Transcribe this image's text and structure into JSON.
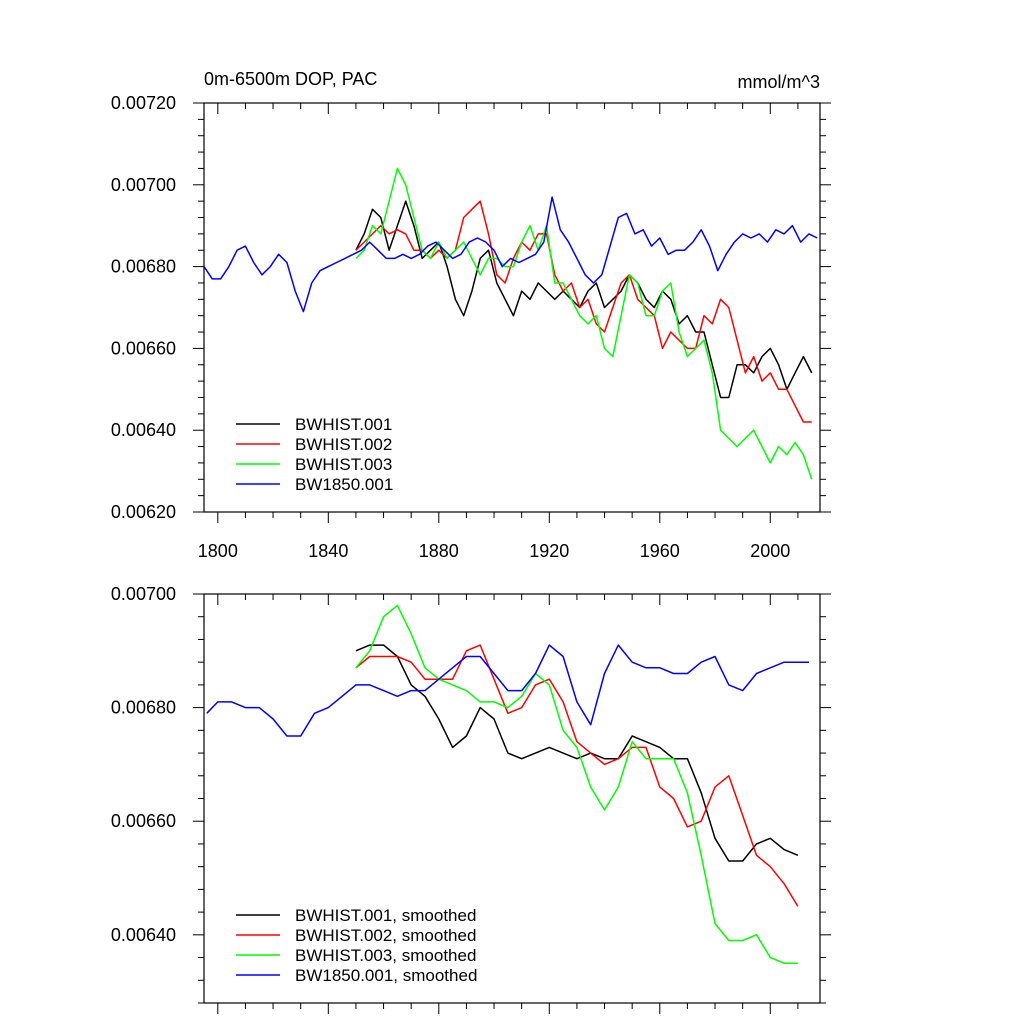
{
  "chart_data": [
    {
      "type": "line",
      "title": "0m-6500m DOP, PAC",
      "units": "mmol/m^3",
      "xlabel": "",
      "ylabel": "",
      "xlim": [
        1795,
        2018
      ],
      "ylim": [
        0.0062,
        0.0072
      ],
      "x_ticks": [
        1800,
        1840,
        1880,
        1920,
        1960,
        2000
      ],
      "x_tick_labels": [
        "1800",
        "1840",
        "1880",
        "1920",
        "1960",
        "2000"
      ],
      "y_ticks": [
        0.0062,
        0.0064,
        0.0066,
        0.0068,
        0.007,
        0.0072
      ],
      "y_tick_labels": [
        "0.00620",
        "0.00640",
        "0.00660",
        "0.00680",
        "0.00700",
        "0.00720"
      ],
      "legend_position": "bottom-left",
      "series": [
        {
          "name": "BWHIST.001",
          "color": "#000000",
          "x": [
            1850,
            1853,
            1856,
            1859,
            1862,
            1865,
            1868,
            1871,
            1874,
            1877,
            1880,
            1883,
            1886,
            1889,
            1892,
            1895,
            1898,
            1901,
            1904,
            1907,
            1910,
            1913,
            1916,
            1919,
            1922,
            1925,
            1928,
            1931,
            1934,
            1937,
            1940,
            1943,
            1946,
            1949,
            1952,
            1955,
            1958,
            1961,
            1964,
            1967,
            1970,
            1973,
            1976,
            1979,
            1982,
            1985,
            1988,
            1991,
            1994,
            1997,
            2000,
            2003,
            2006,
            2009,
            2012,
            2015
          ],
          "values": [
            0.00684,
            0.00688,
            0.00694,
            0.00692,
            0.00684,
            0.0069,
            0.00696,
            0.0069,
            0.00682,
            0.00684,
            0.00686,
            0.0068,
            0.00672,
            0.00668,
            0.00674,
            0.00682,
            0.00684,
            0.00676,
            0.00672,
            0.00668,
            0.00674,
            0.00672,
            0.00676,
            0.00674,
            0.00672,
            0.00674,
            0.00672,
            0.0067,
            0.00674,
            0.00676,
            0.0067,
            0.00672,
            0.00674,
            0.00678,
            0.00676,
            0.00672,
            0.0067,
            0.00674,
            0.00672,
            0.00666,
            0.00668,
            0.00664,
            0.00664,
            0.00656,
            0.00648,
            0.00648,
            0.00656,
            0.00656,
            0.00654,
            0.00658,
            0.0066,
            0.00656,
            0.0065,
            0.00654,
            0.00658,
            0.00654
          ]
        },
        {
          "name": "BWHIST.002",
          "color": "#ff0000",
          "x": [
            1850,
            1853,
            1856,
            1859,
            1862,
            1865,
            1868,
            1871,
            1874,
            1877,
            1880,
            1883,
            1886,
            1889,
            1892,
            1895,
            1898,
            1901,
            1904,
            1907,
            1910,
            1913,
            1916,
            1919,
            1922,
            1925,
            1928,
            1931,
            1934,
            1937,
            1940,
            1943,
            1946,
            1949,
            1952,
            1955,
            1958,
            1961,
            1964,
            1967,
            1970,
            1973,
            1976,
            1979,
            1982,
            1985,
            1988,
            1991,
            1994,
            1997,
            2000,
            2003,
            2006,
            2009,
            2012,
            2015
          ],
          "values": [
            0.00684,
            0.00686,
            0.00688,
            0.0069,
            0.00688,
            0.00689,
            0.00688,
            0.00684,
            0.00684,
            0.00682,
            0.00684,
            0.00682,
            0.00684,
            0.00692,
            0.00694,
            0.00696,
            0.00688,
            0.00678,
            0.00676,
            0.00682,
            0.00686,
            0.00684,
            0.00688,
            0.00688,
            0.00678,
            0.00674,
            0.00676,
            0.0067,
            0.00672,
            0.00666,
            0.00664,
            0.0067,
            0.00676,
            0.00678,
            0.00672,
            0.0067,
            0.00668,
            0.0066,
            0.00664,
            0.00662,
            0.0066,
            0.0066,
            0.00668,
            0.00666,
            0.00672,
            0.0067,
            0.00662,
            0.00654,
            0.00658,
            0.00652,
            0.00654,
            0.0065,
            0.0065,
            0.00646,
            0.00642,
            0.00642
          ]
        },
        {
          "name": "BWHIST.003",
          "color": "#00ff00",
          "x": [
            1850,
            1853,
            1856,
            1859,
            1862,
            1865,
            1868,
            1871,
            1874,
            1877,
            1880,
            1883,
            1886,
            1889,
            1892,
            1895,
            1898,
            1901,
            1904,
            1907,
            1910,
            1913,
            1916,
            1919,
            1922,
            1925,
            1928,
            1931,
            1934,
            1937,
            1940,
            1943,
            1946,
            1949,
            1952,
            1955,
            1958,
            1961,
            1964,
            1967,
            1970,
            1973,
            1976,
            1979,
            1982,
            1985,
            1988,
            1991,
            1994,
            1997,
            2000,
            2003,
            2006,
            2009,
            2012,
            2015
          ],
          "values": [
            0.00682,
            0.00684,
            0.0069,
            0.00688,
            0.00696,
            0.00704,
            0.007,
            0.00692,
            0.00684,
            0.00682,
            0.00686,
            0.00682,
            0.00684,
            0.00686,
            0.00682,
            0.00678,
            0.00682,
            0.00682,
            0.0068,
            0.0068,
            0.00686,
            0.0069,
            0.00684,
            0.0069,
            0.00676,
            0.00676,
            0.00672,
            0.00668,
            0.00666,
            0.00668,
            0.0066,
            0.00658,
            0.00668,
            0.00678,
            0.00676,
            0.00668,
            0.00668,
            0.00674,
            0.00676,
            0.00664,
            0.00658,
            0.0066,
            0.00662,
            0.00654,
            0.0064,
            0.00638,
            0.00636,
            0.00638,
            0.0064,
            0.00636,
            0.00632,
            0.00636,
            0.00634,
            0.00637,
            0.00634,
            0.00628
          ]
        },
        {
          "name": "BW1850.001",
          "color": "#0000ff",
          "x": [
            1795,
            1798,
            1801,
            1804,
            1807,
            1810,
            1813,
            1816,
            1819,
            1822,
            1825,
            1828,
            1831,
            1834,
            1837,
            1840,
            1843,
            1846,
            1849,
            1852,
            1855,
            1858,
            1861,
            1864,
            1867,
            1870,
            1873,
            1876,
            1879,
            1882,
            1885,
            1888,
            1891,
            1894,
            1897,
            1900,
            1903,
            1906,
            1909,
            1912,
            1915,
            1918,
            1921,
            1924,
            1927,
            1930,
            1933,
            1936,
            1939,
            1942,
            1945,
            1948,
            1951,
            1954,
            1957,
            1960,
            1963,
            1966,
            1969,
            1972,
            1975,
            1978,
            1981,
            1984,
            1987,
            1990,
            1993,
            1996,
            1999,
            2002,
            2005,
            2008,
            2011,
            2014,
            2017
          ],
          "values": [
            0.0068,
            0.00677,
            0.00677,
            0.0068,
            0.00684,
            0.00685,
            0.00681,
            0.00678,
            0.0068,
            0.00683,
            0.00681,
            0.00674,
            0.00669,
            0.00676,
            0.00679,
            0.0068,
            0.00681,
            0.00682,
            0.00683,
            0.00684,
            0.00686,
            0.00684,
            0.00682,
            0.00682,
            0.00683,
            0.00682,
            0.00683,
            0.00685,
            0.00686,
            0.00684,
            0.00682,
            0.00683,
            0.00686,
            0.00687,
            0.00686,
            0.00684,
            0.0068,
            0.00682,
            0.00681,
            0.00682,
            0.00683,
            0.00686,
            0.00697,
            0.00689,
            0.00686,
            0.00682,
            0.00678,
            0.00676,
            0.00678,
            0.00685,
            0.00692,
            0.00693,
            0.00688,
            0.00689,
            0.00685,
            0.00687,
            0.00683,
            0.00684,
            0.00684,
            0.00686,
            0.00689,
            0.00685,
            0.00679,
            0.00683,
            0.00686,
            0.00688,
            0.00687,
            0.00688,
            0.00686,
            0.00689,
            0.00688,
            0.0069,
            0.00686,
            0.00688,
            0.00687
          ]
        }
      ]
    },
    {
      "type": "line",
      "title": "",
      "xlabel": "",
      "ylabel": "",
      "xlim": [
        1795,
        2018
      ],
      "ylim": [
        0.00628,
        0.007
      ],
      "x_ticks": [
        1800,
        1840,
        1880,
        1920,
        1960,
        2000
      ],
      "y_ticks": [
        0.0064,
        0.0066,
        0.0068,
        0.007
      ],
      "y_tick_labels": [
        "0.00640",
        "0.00660",
        "0.00680",
        "0.00700"
      ],
      "legend_position": "bottom-left",
      "series": [
        {
          "name": "BWHIST.001, smoothed",
          "color": "#000000",
          "x": [
            1850,
            1855,
            1860,
            1865,
            1870,
            1875,
            1880,
            1885,
            1890,
            1895,
            1900,
            1905,
            1910,
            1915,
            1920,
            1925,
            1930,
            1935,
            1940,
            1945,
            1950,
            1955,
            1960,
            1965,
            1970,
            1975,
            1980,
            1985,
            1990,
            1995,
            2000,
            2005,
            2010
          ],
          "values": [
            0.0069,
            0.00691,
            0.00691,
            0.00689,
            0.00684,
            0.00682,
            0.00678,
            0.00673,
            0.00675,
            0.0068,
            0.00678,
            0.00672,
            0.00671,
            0.00672,
            0.00673,
            0.00672,
            0.00671,
            0.00672,
            0.00671,
            0.00671,
            0.00675,
            0.00674,
            0.00673,
            0.00671,
            0.00671,
            0.00665,
            0.00657,
            0.00653,
            0.00653,
            0.00656,
            0.00657,
            0.00655,
            0.00654
          ]
        },
        {
          "name": "BWHIST.002, smoothed",
          "color": "#ff0000",
          "x": [
            1850,
            1855,
            1860,
            1865,
            1870,
            1875,
            1880,
            1885,
            1890,
            1895,
            1900,
            1905,
            1910,
            1915,
            1920,
            1925,
            1930,
            1935,
            1940,
            1945,
            1950,
            1955,
            1960,
            1965,
            1970,
            1975,
            1980,
            1985,
            1990,
            1995,
            2000,
            2005,
            2010
          ],
          "values": [
            0.00687,
            0.00689,
            0.00689,
            0.00689,
            0.00688,
            0.00685,
            0.00685,
            0.00685,
            0.0069,
            0.00691,
            0.00685,
            0.00679,
            0.0068,
            0.00684,
            0.00685,
            0.00681,
            0.00674,
            0.00672,
            0.0067,
            0.00671,
            0.00673,
            0.00673,
            0.00666,
            0.00664,
            0.00659,
            0.0066,
            0.00666,
            0.00668,
            0.00661,
            0.00654,
            0.00652,
            0.00649,
            0.00645
          ]
        },
        {
          "name": "BWHIST.003, smoothed",
          "color": "#00ff00",
          "x": [
            1850,
            1855,
            1860,
            1865,
            1870,
            1875,
            1880,
            1885,
            1890,
            1895,
            1900,
            1905,
            1910,
            1915,
            1920,
            1925,
            1930,
            1935,
            1940,
            1945,
            1950,
            1955,
            1960,
            1965,
            1970,
            1975,
            1980,
            1985,
            1990,
            1995,
            2000,
            2005,
            2010
          ],
          "values": [
            0.00687,
            0.0069,
            0.00696,
            0.00698,
            0.00693,
            0.00687,
            0.00685,
            0.00684,
            0.00683,
            0.00681,
            0.00681,
            0.0068,
            0.00682,
            0.00686,
            0.00684,
            0.00676,
            0.00673,
            0.00666,
            0.00662,
            0.00666,
            0.00674,
            0.00671,
            0.00671,
            0.00671,
            0.00665,
            0.00654,
            0.00642,
            0.00639,
            0.00639,
            0.0064,
            0.00636,
            0.00635,
            0.00635
          ]
        },
        {
          "name": "BW1850.001, smoothed",
          "color": "#0000ff",
          "x": [
            1796,
            1800,
            1805,
            1810,
            1815,
            1820,
            1825,
            1830,
            1835,
            1840,
            1845,
            1850,
            1855,
            1860,
            1865,
            1870,
            1875,
            1880,
            1885,
            1890,
            1895,
            1900,
            1905,
            1910,
            1915,
            1920,
            1925,
            1930,
            1935,
            1940,
            1945,
            1950,
            1955,
            1960,
            1965,
            1970,
            1975,
            1980,
            1985,
            1990,
            1995,
            2000,
            2005,
            2010,
            2014
          ],
          "values": [
            0.00679,
            0.00681,
            0.00681,
            0.0068,
            0.0068,
            0.00678,
            0.00675,
            0.00675,
            0.00679,
            0.0068,
            0.00682,
            0.00684,
            0.00684,
            0.00683,
            0.00682,
            0.00683,
            0.00683,
            0.00685,
            0.00687,
            0.00689,
            0.00689,
            0.00686,
            0.00683,
            0.00683,
            0.00686,
            0.00691,
            0.00689,
            0.00681,
            0.00677,
            0.00686,
            0.00691,
            0.00688,
            0.00687,
            0.00687,
            0.00686,
            0.00686,
            0.00688,
            0.00689,
            0.00684,
            0.00683,
            0.00686,
            0.00687,
            0.00688,
            0.00688,
            0.00688
          ]
        }
      ]
    }
  ]
}
